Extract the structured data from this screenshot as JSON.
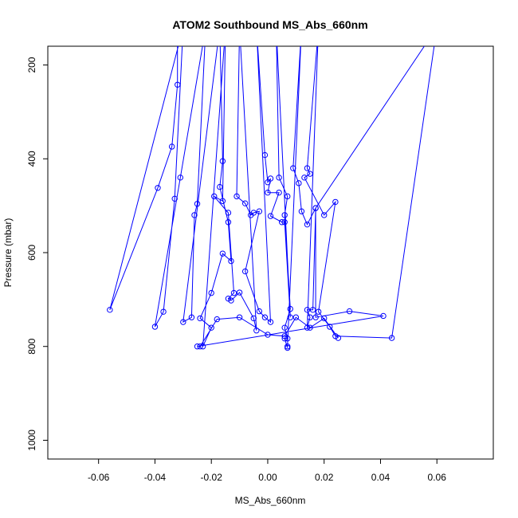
{
  "chart_data": {
    "type": "scatter",
    "title": "ATOM2 Southbound MS_Abs_660nm",
    "xlabel": "MS_Abs_660nm",
    "ylabel": "Pressure (mbar)",
    "xlim": [
      -0.078,
      0.08
    ],
    "ylim": [
      1040,
      160
    ],
    "y_reversed": true,
    "grid": false,
    "legend": "none",
    "x_ticks": [
      -0.06,
      -0.04,
      -0.02,
      0.0,
      0.02,
      0.04,
      0.06
    ],
    "x_tick_labels": [
      "-0.06",
      "-0.04",
      "-0.02",
      "0.00",
      "0.02",
      "0.04",
      "0.06"
    ],
    "y_ticks": [
      200,
      400,
      600,
      800,
      1000
    ],
    "y_tick_labels": [
      "200",
      "400",
      "600",
      "800",
      "1000"
    ],
    "series": [
      {
        "color": "#0000ff",
        "marker": "open-circle",
        "connected": true,
        "points": [
          [
            -0.032,
            120
          ],
          [
            -0.032,
            242
          ],
          [
            -0.034,
            374
          ],
          [
            -0.039,
            462
          ],
          [
            -0.056,
            722
          ],
          [
            -0.03,
            120
          ],
          [
            -0.033,
            485
          ],
          [
            -0.037,
            726
          ],
          [
            -0.04,
            758
          ],
          [
            -0.031,
            440
          ],
          [
            -0.022,
            120
          ],
          [
            -0.025,
            496
          ],
          [
            -0.026,
            520
          ],
          [
            -0.027,
            738
          ],
          [
            -0.03,
            748
          ],
          [
            -0.017,
            120
          ],
          [
            -0.016,
            405
          ],
          [
            -0.017,
            460
          ],
          [
            -0.014,
            535
          ],
          [
            -0.013,
            618
          ],
          [
            -0.016,
            602
          ],
          [
            -0.02,
            686
          ],
          [
            -0.024,
            740
          ],
          [
            -0.02,
            760
          ],
          [
            -0.023,
            800
          ],
          [
            -0.015,
            120
          ],
          [
            -0.016,
            490
          ],
          [
            -0.019,
            480
          ],
          [
            -0.014,
            515
          ],
          [
            -0.012,
            686
          ],
          [
            -0.014,
            698
          ],
          [
            -0.013,
            702
          ],
          [
            -0.01,
            685
          ],
          [
            -0.005,
            740
          ],
          [
            -0.004,
            766
          ],
          [
            -0.01,
            120
          ],
          [
            -0.011,
            480
          ],
          [
            -0.008,
            495
          ],
          [
            -0.006,
            520
          ],
          [
            -0.005,
            515
          ],
          [
            -0.003,
            512
          ],
          [
            -0.008,
            640
          ],
          [
            -0.003,
            725
          ],
          [
            -0.001,
            738
          ],
          [
            0.001,
            748
          ],
          [
            -0.004,
            120
          ],
          [
            -0.001,
            392
          ],
          [
            0.0,
            450
          ],
          [
            0.001,
            442
          ],
          [
            0.0,
            472
          ],
          [
            0.004,
            472
          ],
          [
            0.001,
            522
          ],
          [
            0.005,
            535
          ],
          [
            0.006,
            535
          ],
          [
            0.008,
            738
          ],
          [
            0.003,
            120
          ],
          [
            0.004,
            440
          ],
          [
            0.007,
            480
          ],
          [
            0.006,
            520
          ],
          [
            0.008,
            720
          ],
          [
            0.006,
            760
          ],
          [
            0.007,
            783
          ],
          [
            0.006,
            783
          ],
          [
            0.007,
            803
          ],
          [
            0.007,
            800
          ],
          [
            0.012,
            120
          ],
          [
            0.009,
            420
          ],
          [
            0.011,
            452
          ],
          [
            0.012,
            512
          ],
          [
            0.014,
            540
          ],
          [
            0.017,
            505
          ],
          [
            0.016,
            722
          ],
          [
            0.014,
            722
          ],
          [
            0.015,
            738
          ],
          [
            0.014,
            760
          ],
          [
            0.018,
            120
          ],
          [
            0.014,
            420
          ],
          [
            0.015,
            432
          ],
          [
            0.013,
            440
          ],
          [
            0.02,
            520
          ],
          [
            0.024,
            492
          ],
          [
            0.018,
            726
          ],
          [
            0.022,
            758
          ],
          [
            0.024,
            778
          ],
          [
            0.044,
            782
          ],
          [
            0.06,
            120
          ],
          [
            0.017,
            505
          ],
          [
            0.017,
            738
          ],
          [
            0.029,
            725
          ],
          [
            0.041,
            735
          ],
          [
            -0.025,
            800
          ],
          [
            -0.024,
            800
          ],
          [
            -0.018,
            742
          ],
          [
            -0.01,
            738
          ],
          [
            0.0,
            775
          ],
          [
            0.006,
            778
          ],
          [
            0.01,
            738
          ],
          [
            0.015,
            760
          ],
          [
            0.02,
            740
          ],
          [
            0.025,
            782
          ]
        ]
      }
    ]
  }
}
